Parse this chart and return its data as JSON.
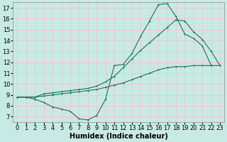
{
  "xlabel": "Humidex (Indice chaleur)",
  "bg_color": "#c8eae4",
  "grid_color": "#e8c8cc",
  "line_color": "#1a7060",
  "xlim": [
    -0.5,
    23.5
  ],
  "ylim": [
    6.5,
    17.5
  ],
  "xticks": [
    0,
    1,
    2,
    3,
    4,
    5,
    6,
    7,
    8,
    9,
    10,
    11,
    12,
    13,
    14,
    15,
    16,
    17,
    18,
    19,
    20,
    21,
    22,
    23
  ],
  "yticks": [
    7,
    8,
    9,
    10,
    11,
    12,
    13,
    14,
    15,
    16,
    17
  ],
  "line1_x": [
    0,
    1,
    2,
    3,
    4,
    5,
    6,
    7,
    8,
    9,
    10,
    11,
    12,
    13,
    14,
    15,
    16,
    17,
    18,
    19,
    20,
    21,
    22,
    23
  ],
  "line1_y": [
    8.8,
    8.8,
    8.8,
    8.9,
    9.0,
    9.1,
    9.2,
    9.3,
    9.4,
    9.5,
    9.7,
    9.9,
    10.1,
    10.4,
    10.7,
    11.0,
    11.3,
    11.5,
    11.6,
    11.6,
    11.7,
    11.7,
    11.7,
    11.7
  ],
  "line2_x": [
    0,
    1,
    2,
    3,
    4,
    5,
    6,
    7,
    8,
    9,
    10,
    11,
    12,
    13,
    14,
    15,
    16,
    17,
    18,
    19,
    20,
    21,
    22
  ],
  "line2_y": [
    8.8,
    8.8,
    8.6,
    8.3,
    7.9,
    7.7,
    7.5,
    6.8,
    6.7,
    7.1,
    8.6,
    11.7,
    11.8,
    12.8,
    14.4,
    15.8,
    17.3,
    17.4,
    16.2,
    14.6,
    14.2,
    13.5,
    11.7
  ],
  "line3_x": [
    0,
    1,
    2,
    3,
    4,
    5,
    6,
    7,
    8,
    9,
    10,
    11,
    12,
    13,
    14,
    15,
    16,
    17,
    18,
    19,
    20,
    21,
    22,
    23
  ],
  "line3_y": [
    8.8,
    8.8,
    8.8,
    9.1,
    9.2,
    9.3,
    9.4,
    9.5,
    9.6,
    9.8,
    10.2,
    10.7,
    11.5,
    12.3,
    13.1,
    13.8,
    14.5,
    15.2,
    15.9,
    15.8,
    14.8,
    14.1,
    13.0,
    11.7
  ],
  "xlabel_fontsize": 7,
  "tick_fontsize": 6
}
